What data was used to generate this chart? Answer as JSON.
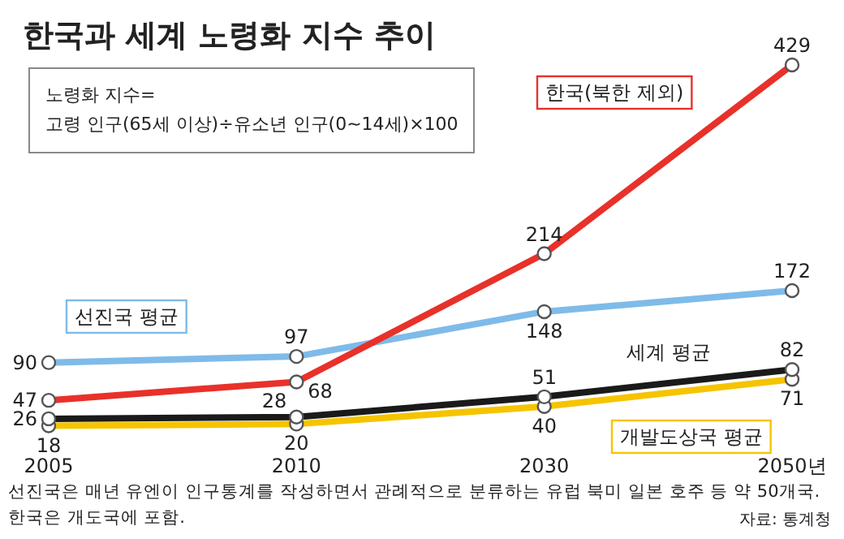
{
  "chart_data": {
    "type": "line",
    "title": "한국과 세계 노령화 지수 추이",
    "categories": [
      "2005",
      "2010",
      "2030",
      "2050년"
    ],
    "marker": "circle",
    "data_labels": true,
    "series": [
      {
        "name": "한국(북한 제외)",
        "color": "#e8312a",
        "values": [
          47,
          68,
          214,
          429
        ]
      },
      {
        "name": "선진국 평균",
        "color": "#7fbbe9",
        "values": [
          90,
          97,
          148,
          172
        ]
      },
      {
        "name": "세계 평균",
        "color": "#1a1a1a",
        "values": [
          26,
          28,
          51,
          82
        ]
      },
      {
        "name": "개발도상국 평균",
        "color": "#f5c400",
        "values": [
          18,
          20,
          40,
          71
        ]
      }
    ],
    "annotations": [
      "노령화 지수=",
      "고령 인구(65세 이상)÷유소년 인구(0~14세)×100",
      "선진국은 매년 유엔이 인구통계를 작성하면서 관례적으로 분류하는 유럽 북미 일본 호주 등 약 50개국.",
      "한국은 개도국에 포함.",
      "자료: 통계청"
    ]
  }
}
